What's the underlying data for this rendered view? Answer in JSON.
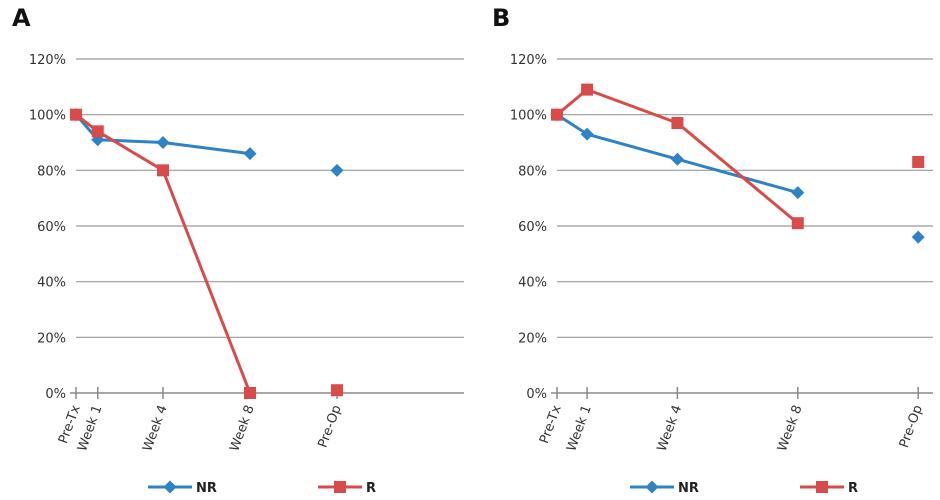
{
  "chart_data": [
    {
      "panel": "A",
      "type": "line",
      "categories": [
        "Pre-Tx",
        "Week 1",
        "Week 4",
        "Week 8",
        "Pre-Op"
      ],
      "x": [
        0,
        1,
        4,
        8,
        12
      ],
      "ylim": [
        0,
        120
      ],
      "yticks": [
        "0%",
        "20%",
        "40%",
        "60%",
        "80%",
        "100%",
        "120%"
      ],
      "ytick_values": [
        0,
        20,
        40,
        60,
        80,
        100,
        120
      ],
      "grid": true,
      "legend_position": "bottom",
      "series": [
        {
          "name": "NR",
          "color": "#2e83c6",
          "marker": "diamond",
          "values": [
            100,
            91,
            90,
            86,
            80
          ],
          "connected": [
            true,
            true,
            true,
            true,
            false
          ]
        },
        {
          "name": "R",
          "color": "#d94b4b",
          "marker": "square",
          "values": [
            100,
            94,
            80,
            0,
            1
          ],
          "connected": [
            true,
            true,
            true,
            true,
            false
          ]
        }
      ]
    },
    {
      "panel": "B",
      "type": "line",
      "categories": [
        "Pre-Tx",
        "Week 1",
        "Week 4",
        "Week 8",
        "Pre-Op"
      ],
      "x": [
        0,
        1,
        4,
        8,
        12
      ],
      "ylim": [
        0,
        120
      ],
      "yticks": [
        "0%",
        "20%",
        "40%",
        "60%",
        "80%",
        "100%",
        "120%"
      ],
      "ytick_values": [
        0,
        20,
        40,
        60,
        80,
        100,
        120
      ],
      "grid": true,
      "legend_position": "bottom",
      "series": [
        {
          "name": "NR",
          "color": "#2e83c6",
          "marker": "diamond",
          "values": [
            100,
            93,
            84,
            72,
            56
          ],
          "connected": [
            true,
            true,
            true,
            true,
            false
          ]
        },
        {
          "name": "R",
          "color": "#d94b4b",
          "marker": "square",
          "values": [
            100,
            109,
            97,
            61,
            83
          ],
          "connected": [
            true,
            true,
            true,
            true,
            false
          ]
        }
      ]
    }
  ]
}
